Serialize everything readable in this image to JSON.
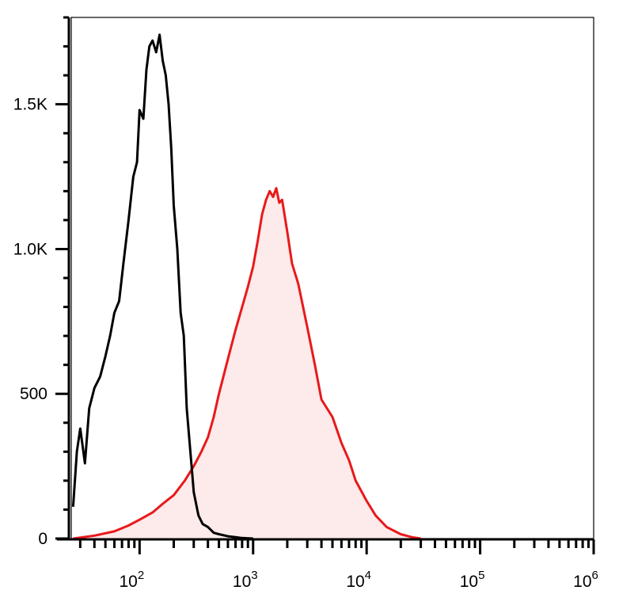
{
  "chart_data": {
    "type": "area",
    "title": "",
    "xlabel": "",
    "ylabel": "",
    "x_scale": "log",
    "xlim": [
      25,
      1000000
    ],
    "ylim": [
      0,
      1800
    ],
    "grid": false,
    "legend": "none",
    "y_ticks": [
      {
        "value": 0,
        "label": "0"
      },
      {
        "value": 500,
        "label": "500"
      },
      {
        "value": 1000,
        "label": "1.0K"
      },
      {
        "value": 1500,
        "label": "1.5K"
      }
    ],
    "x_ticks": [
      {
        "value": 100,
        "base": "10",
        "exp": "2"
      },
      {
        "value": 1000,
        "base": "10",
        "exp": "3"
      },
      {
        "value": 10000,
        "base": "10",
        "exp": "4"
      },
      {
        "value": 100000,
        "base": "10",
        "exp": "5"
      },
      {
        "value": 1000000,
        "base": "10",
        "exp": "6"
      }
    ],
    "series": [
      {
        "role": "control",
        "color": "#000000",
        "fill": "none",
        "x": [
          26,
          28,
          30,
          33,
          36,
          40,
          45,
          50,
          55,
          60,
          66,
          72,
          80,
          88,
          95,
          100,
          108,
          115,
          122,
          130,
          140,
          150,
          160,
          170,
          180,
          190,
          200,
          215,
          230,
          245,
          260,
          280,
          300,
          330,
          360,
          400,
          450,
          500,
          600,
          700,
          800,
          1000
        ],
        "y": [
          110,
          300,
          380,
          260,
          450,
          520,
          560,
          630,
          700,
          780,
          820,
          950,
          1100,
          1250,
          1300,
          1480,
          1450,
          1620,
          1700,
          1720,
          1680,
          1740,
          1650,
          1600,
          1500,
          1350,
          1150,
          1000,
          780,
          700,
          450,
          300,
          160,
          80,
          50,
          40,
          20,
          15,
          8,
          5,
          2,
          0
        ]
      },
      {
        "role": "stained",
        "color": "#e8191b",
        "fill": "#fdeaea",
        "x": [
          26,
          40,
          60,
          80,
          100,
          130,
          160,
          200,
          250,
          300,
          350,
          400,
          450,
          500,
          600,
          700,
          800,
          900,
          1000,
          1100,
          1200,
          1300,
          1400,
          1500,
          1600,
          1700,
          1800,
          2000,
          2200,
          2500,
          3000,
          3500,
          4000,
          5000,
          6000,
          7000,
          8000,
          10000,
          12000,
          15000,
          20000,
          25000,
          30000
        ],
        "y": [
          0,
          10,
          25,
          45,
          65,
          90,
          120,
          150,
          200,
          250,
          300,
          350,
          420,
          500,
          620,
          720,
          800,
          870,
          940,
          1030,
          1120,
          1170,
          1200,
          1180,
          1210,
          1160,
          1170,
          1060,
          950,
          880,
          730,
          600,
          480,
          420,
          330,
          270,
          200,
          130,
          80,
          40,
          15,
          5,
          0
        ]
      }
    ]
  }
}
